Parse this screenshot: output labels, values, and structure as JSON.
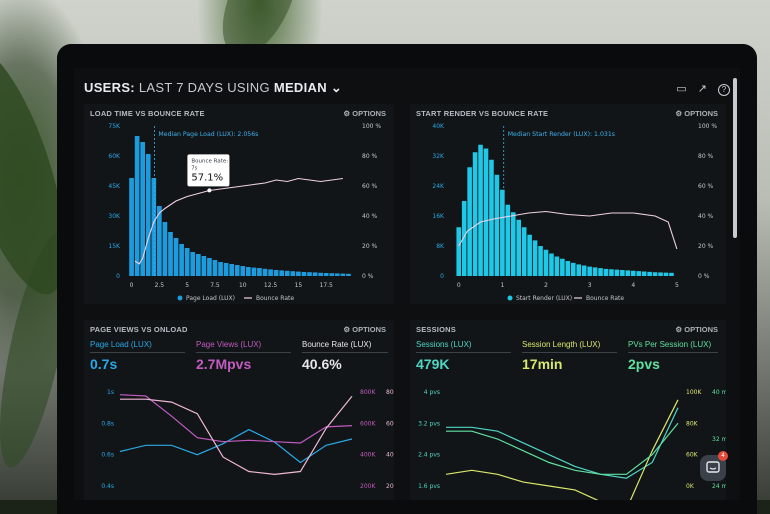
{
  "header": {
    "title_prefix": "USERS:",
    "title_mid": "LAST 7 DAYS",
    "title_using": "USING",
    "title_stat": "MEDIAN",
    "icons": [
      "monitor-icon",
      "share-icon",
      "help-icon"
    ]
  },
  "options_label": "OPTIONS",
  "panels": {
    "load_bounce": {
      "title": "LOAD TIME VS BOUNCE RATE",
      "median_label": "Median Page Load (LUX): 2.056s",
      "tooltip_label": "Bounce Rate:",
      "tooltip_sub": "7s",
      "tooltip_value": "57.1%",
      "legend": [
        "Page Load (LUX)",
        "Bounce Rate"
      ]
    },
    "render_bounce": {
      "title": "START RENDER VS BOUNCE RATE",
      "median_label": "Median Start Render (LUX): 1.031s",
      "legend": [
        "Start Render (LUX)",
        "Bounce Rate"
      ]
    },
    "pageviews": {
      "title": "PAGE VIEWS VS ONLOAD",
      "kpis": [
        {
          "label": "Page Load (LUX)",
          "value": "0.7s",
          "color": "#2aa8e6"
        },
        {
          "label": "Page Views (LUX)",
          "value": "2.7Mpvs",
          "color": "#c05bc0"
        },
        {
          "label": "Bounce Rate (LUX)",
          "value": "40.6%",
          "color": "#e6e6ea"
        }
      ]
    },
    "sessions": {
      "title": "SESSIONS",
      "kpis": [
        {
          "label": "Sessions (LUX)",
          "value": "479K",
          "color": "#4fd6c4"
        },
        {
          "label": "Session Length (LUX)",
          "value": "17min",
          "color": "#d8e86a"
        },
        {
          "label": "PVs Per Session (LUX)",
          "value": "2pvs",
          "color": "#5fe0a0"
        }
      ]
    }
  },
  "chart_data": [
    {
      "type": "bar",
      "title": "LOAD TIME VS BOUNCE RATE",
      "x_ticks": [
        "0",
        "2.5",
        "5",
        "7.5",
        "10",
        "12.5",
        "15",
        "17.5"
      ],
      "y_left_ticks": [
        "0",
        "15K",
        "30K",
        "45K",
        "60K",
        "75K"
      ],
      "y_right_ticks": [
        "0 %",
        "20 %",
        "40 %",
        "60 %",
        "80 %",
        "100 %"
      ],
      "ylim_left": [
        0,
        75000
      ],
      "ylim_right": [
        0,
        100
      ],
      "xlim": [
        -0.5,
        20
      ],
      "bar_x": [
        0,
        0.5,
        1,
        1.5,
        2,
        2.5,
        3,
        3.5,
        4,
        4.5,
        5,
        5.5,
        6,
        6.5,
        7,
        7.5,
        8,
        8.5,
        9,
        9.5,
        10,
        10.5,
        11,
        11.5,
        12,
        12.5,
        13,
        13.5,
        14,
        14.5,
        15,
        15.5,
        16,
        16.5,
        17,
        17.5,
        18,
        18.5,
        19,
        19.5
      ],
      "series": [
        {
          "name": "Page Load (LUX)",
          "color": "#1e9bdc",
          "values": [
            49000,
            70000,
            67000,
            61000,
            49000,
            35000,
            27000,
            22000,
            19000,
            16000,
            14000,
            12000,
            11000,
            10000,
            9000,
            8000,
            7000,
            6500,
            6000,
            5500,
            5000,
            4500,
            4200,
            4000,
            3600,
            3300,
            3000,
            2800,
            2600,
            2400,
            2200,
            2000,
            1900,
            1800,
            1600,
            1500,
            1400,
            1300,
            1200,
            1100
          ]
        },
        {
          "name": "Bounce Rate",
          "color": "#f0d2e6",
          "x": [
            0.3,
            0.7,
            1,
            1.5,
            2,
            2.5,
            3,
            4,
            5,
            6,
            7,
            8,
            9,
            10,
            11,
            12,
            13,
            14,
            15,
            16,
            17,
            18,
            19
          ],
          "values": [
            10,
            8,
            12,
            25,
            36,
            42,
            45,
            50,
            53,
            55,
            57,
            58,
            59,
            60,
            61,
            62,
            64,
            63,
            65,
            64,
            63,
            64,
            65
          ]
        }
      ],
      "median_x": 2.056,
      "annotations": [
        "Median Page Load (LUX): 2.056s",
        "Bounce Rate: 7s 57.1%"
      ],
      "legend": "bottom"
    },
    {
      "type": "bar",
      "title": "START RENDER VS BOUNCE RATE",
      "x_ticks": [
        "0",
        "1",
        "2",
        "3",
        "4",
        "5"
      ],
      "y_left_ticks": [
        "0",
        "8K",
        "16K",
        "24K",
        "32K",
        "40K"
      ],
      "y_right_ticks": [
        "0 %",
        "20 %",
        "40 %",
        "60 %",
        "80 %",
        "100 %"
      ],
      "ylim_left": [
        0,
        40000
      ],
      "ylim_right": [
        0,
        100
      ],
      "xlim": [
        -0.2,
        5.3
      ],
      "bar_x": [
        0,
        0.125,
        0.25,
        0.375,
        0.5,
        0.625,
        0.75,
        0.875,
        1,
        1.125,
        1.25,
        1.375,
        1.5,
        1.625,
        1.75,
        1.875,
        2,
        2.125,
        2.25,
        2.375,
        2.5,
        2.625,
        2.75,
        2.875,
        3,
        3.125,
        3.25,
        3.375,
        3.5,
        3.625,
        3.75,
        3.875,
        4,
        4.125,
        4.25,
        4.375,
        4.5,
        4.625,
        4.75,
        4.875
      ],
      "series": [
        {
          "name": "Start Render (LUX)",
          "color": "#1ec8e6",
          "values": [
            13000,
            20000,
            29000,
            33000,
            35000,
            34000,
            31000,
            27000,
            23000,
            19000,
            17000,
            15000,
            13000,
            11000,
            9500,
            8000,
            7000,
            6000,
            5200,
            4600,
            4000,
            3500,
            3100,
            2800,
            2500,
            2300,
            2100,
            1900,
            1800,
            1700,
            1600,
            1500,
            1400,
            1300,
            1200,
            1100,
            1000,
            950,
            900,
            850
          ]
        },
        {
          "name": "Bounce Rate",
          "color": "#f0d2e6",
          "x": [
            0,
            0.2,
            0.5,
            0.8,
            1.2,
            1.6,
            2,
            2.5,
            3,
            3.5,
            4,
            4.5,
            4.8,
            5
          ],
          "values": [
            20,
            30,
            36,
            38,
            40,
            42,
            43,
            41,
            40,
            42,
            42,
            40,
            36,
            18
          ]
        }
      ],
      "median_x": 1.031,
      "annotations": [
        "Median Start Render (LUX): 1.031s"
      ],
      "legend": "bottom"
    },
    {
      "type": "line",
      "title": "PAGE VIEWS VS ONLOAD",
      "y_left_ticks": [
        "0.4s",
        "0.6s",
        "0.8s",
        "1s"
      ],
      "y_right_ticks": [
        "200K",
        "400K",
        "600K",
        "800K"
      ],
      "y_right2_ticks": [
        "20 %",
        "40 %",
        "60 %",
        "80 %"
      ],
      "series": [
        {
          "name": "Page Load (LUX)",
          "color": "#2aa8e6",
          "values": [
            0.62,
            0.66,
            0.66,
            0.6,
            0.67,
            0.76,
            0.68,
            0.55,
            0.66,
            0.7
          ]
        },
        {
          "name": "Page Views (LUX)",
          "color": "#c05bc0",
          "values": [
            880,
            870,
            720,
            560,
            530,
            540,
            530,
            520,
            640,
            650
          ]
        },
        {
          "name": "Bounce Rate (LUX)",
          "color": "#f0b8d6",
          "values": [
            80,
            80,
            78,
            70,
            40,
            30,
            28,
            30,
            60,
            82
          ]
        }
      ]
    },
    {
      "type": "line",
      "title": "SESSIONS",
      "y_left_ticks": [
        "1.6 pvs",
        "2.4 pvs",
        "3.2 pvs",
        "4 pvs"
      ],
      "y_right_ticks": [
        "0K",
        "60K",
        "80K",
        "100K"
      ],
      "y_right2_ticks": [
        "24 min",
        "32 min",
        "40 min"
      ],
      "series": [
        {
          "name": "Sessions (LUX)",
          "color": "#4fd6c4",
          "values": [
            3.1,
            3.1,
            3.0,
            2.7,
            2.4,
            2.1,
            1.9,
            1.8,
            2.2,
            3.6
          ]
        },
        {
          "name": "Session Length (LUX)",
          "color": "#d8e86a",
          "values": [
            1.9,
            2.0,
            1.9,
            1.7,
            1.6,
            1.5,
            1.2,
            1.0,
            2.5,
            3.8
          ]
        },
        {
          "name": "PVs Per Session (LUX)",
          "color": "#5fe0a0",
          "values": [
            3.0,
            3.0,
            2.8,
            2.5,
            2.2,
            2.0,
            1.9,
            1.9,
            2.4,
            3.2
          ]
        }
      ]
    }
  ],
  "chat": {
    "badge": "4"
  }
}
